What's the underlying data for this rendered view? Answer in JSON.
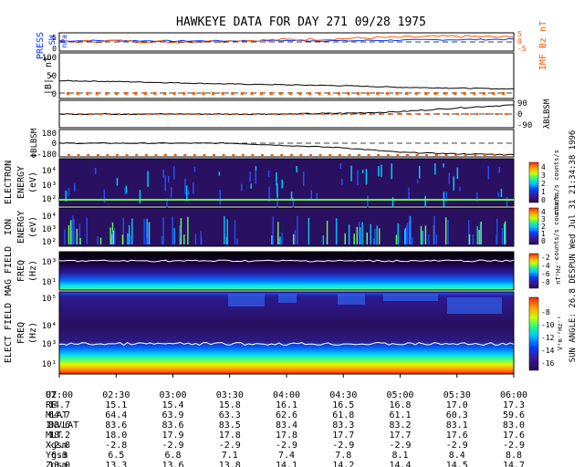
{
  "title": "HAWKEYE DATA FOR DAY 271 09/28 1975",
  "side_text": "SUN ANGLE: 26.8 DESPUN Wed Jul 31 21:34:38 1996",
  "colors": {
    "press": "#0033ff",
    "imf": "#ff5a00",
    "line": "#000000",
    "spectrogram_bg": "#2a1060"
  },
  "panels": {
    "press": {
      "ylabel1": "PRESS",
      "ylabel2": "SW",
      "unit": "nPa",
      "ticks": [
        "5",
        "0"
      ],
      "right_label": "IMF Bz nT",
      "right_ticks": [
        "5",
        "0",
        "-5"
      ]
    },
    "b": {
      "ylabel": "|B|, nT",
      "ticks": [
        "100",
        "50",
        "0"
      ]
    },
    "lambda": {
      "ylabel": "λBLBSM",
      "ticks": [
        "90",
        "0",
        "-90"
      ]
    },
    "phi": {
      "ylabel": "ΦBLBSM",
      "ticks": [
        "180",
        "0",
        "-180"
      ]
    },
    "electron": {
      "ylabel": [
        "ELECTRON",
        "ENERGY",
        "(eV)"
      ],
      "ticks": [
        "10⁴",
        "10³",
        "10²"
      ],
      "cb_ticks": [
        "4",
        "3",
        "2",
        "1",
        "0"
      ],
      "cb_label": "counts/s counts/s"
    },
    "ion": {
      "ylabel": [
        "ION",
        "ENERGY",
        "(eV)"
      ],
      "ticks": [
        "10⁴",
        "10³",
        "10²"
      ],
      "cb_ticks": [
        "4",
        "3",
        "2",
        "1",
        "0"
      ],
      "cb_label": "counts/s counts/s"
    },
    "mag": {
      "ylabel": [
        "MAG FIELD",
        "FREQ",
        "(Hz)"
      ],
      "ticks": [
        "10³",
        "10¹"
      ],
      "cb_ticks": [
        "-2",
        "-4",
        "-6",
        "-8"
      ],
      "cb_label": "nT²Hz⁻¹"
    },
    "efield": {
      "ylabel": [
        "ELECT FIELD",
        "FREQ",
        "(Hz)"
      ],
      "ticks": [
        "10⁵",
        "10⁴",
        "10³",
        "10¹"
      ],
      "cb_ticks": [
        "-8",
        "-10",
        "-12",
        "-14",
        "-16"
      ],
      "cb_label": "V²m⁻²Hz⁻¹"
    }
  },
  "ephemeris": {
    "rows": [
      {
        "label": "UT",
        "values": [
          "02:00",
          "02:30",
          "03:00",
          "03:30",
          "04:00",
          "04:30",
          "05:00",
          "05:30",
          "06:00"
        ]
      },
      {
        "label": "RE",
        "values": [
          "14.7",
          "15.1",
          "15.4",
          "15.8",
          "16.1",
          "16.5",
          "16.8",
          "17.0",
          "17.3"
        ]
      },
      {
        "label": "MLAT",
        "values": [
          "64.7",
          "64.4",
          "63.9",
          "63.3",
          "62.6",
          "61.8",
          "61.1",
          "60.3",
          "59.6"
        ]
      },
      {
        "label": "INVLAT",
        "values": [
          "83.6",
          "83.6",
          "83.6",
          "83.5",
          "83.4",
          "83.3",
          "83.2",
          "83.1",
          "83.0"
        ]
      },
      {
        "label": "MLT",
        "values": [
          "18.2",
          "18.0",
          "17.9",
          "17.8",
          "17.8",
          "17.7",
          "17.7",
          "17.6",
          "17.6"
        ]
      },
      {
        "label": "Xgsm",
        "values": [
          "-2.8",
          "-2.8",
          "-2.9",
          "-2.9",
          "-2.9",
          "-2.9",
          "-2.9",
          "-2.9",
          "-2.9"
        ]
      },
      {
        "label": "Ygsm",
        "values": [
          "6.3",
          "6.5",
          "6.8",
          "7.1",
          "7.4",
          "7.8",
          "8.1",
          "8.4",
          "8.8"
        ]
      },
      {
        "label": "Zgsm",
        "values": [
          "13.0",
          "13.3",
          "13.6",
          "13.8",
          "14.1",
          "14.2",
          "14.4",
          "14.5",
          "14.7"
        ]
      }
    ]
  },
  "chart_data": {
    "type": "line",
    "title": "HAWKEYE DATA FOR DAY 271 09/28 1975",
    "xlabel": "UT",
    "categories": [
      "02:00",
      "02:30",
      "03:00",
      "03:30",
      "04:00",
      "04:30",
      "05:00",
      "05:30",
      "06:00"
    ],
    "series": [
      {
        "name": "PRESS SW",
        "values": [
          2.5,
          2.6,
          2.4,
          2.5,
          2.6,
          2.5,
          2.8,
          3.0,
          3.2
        ]
      },
      {
        "name": "IMF Bz",
        "values": [
          2.0,
          2.5,
          2.0,
          2.5,
          3.0,
          3.5,
          4.0,
          4.5,
          4.0
        ]
      },
      {
        "name": "|B|",
        "values": [
          38,
          36,
          33,
          30,
          28,
          26,
          22,
          20,
          18
        ]
      },
      {
        "name": "λBLBSM",
        "values": [
          0,
          0,
          0,
          0,
          0,
          5,
          15,
          40,
          60
        ]
      },
      {
        "name": "ΦBLBSM",
        "values": [
          0,
          0,
          0,
          0,
          -30,
          -60,
          -120,
          -140,
          -150
        ]
      }
    ],
    "ylim_press": [
      -2,
      6
    ],
    "ylim_b": [
      -5,
      105
    ],
    "ylim_lambda": [
      -90,
      90
    ],
    "ylim_phi": [
      -180,
      180
    ]
  }
}
